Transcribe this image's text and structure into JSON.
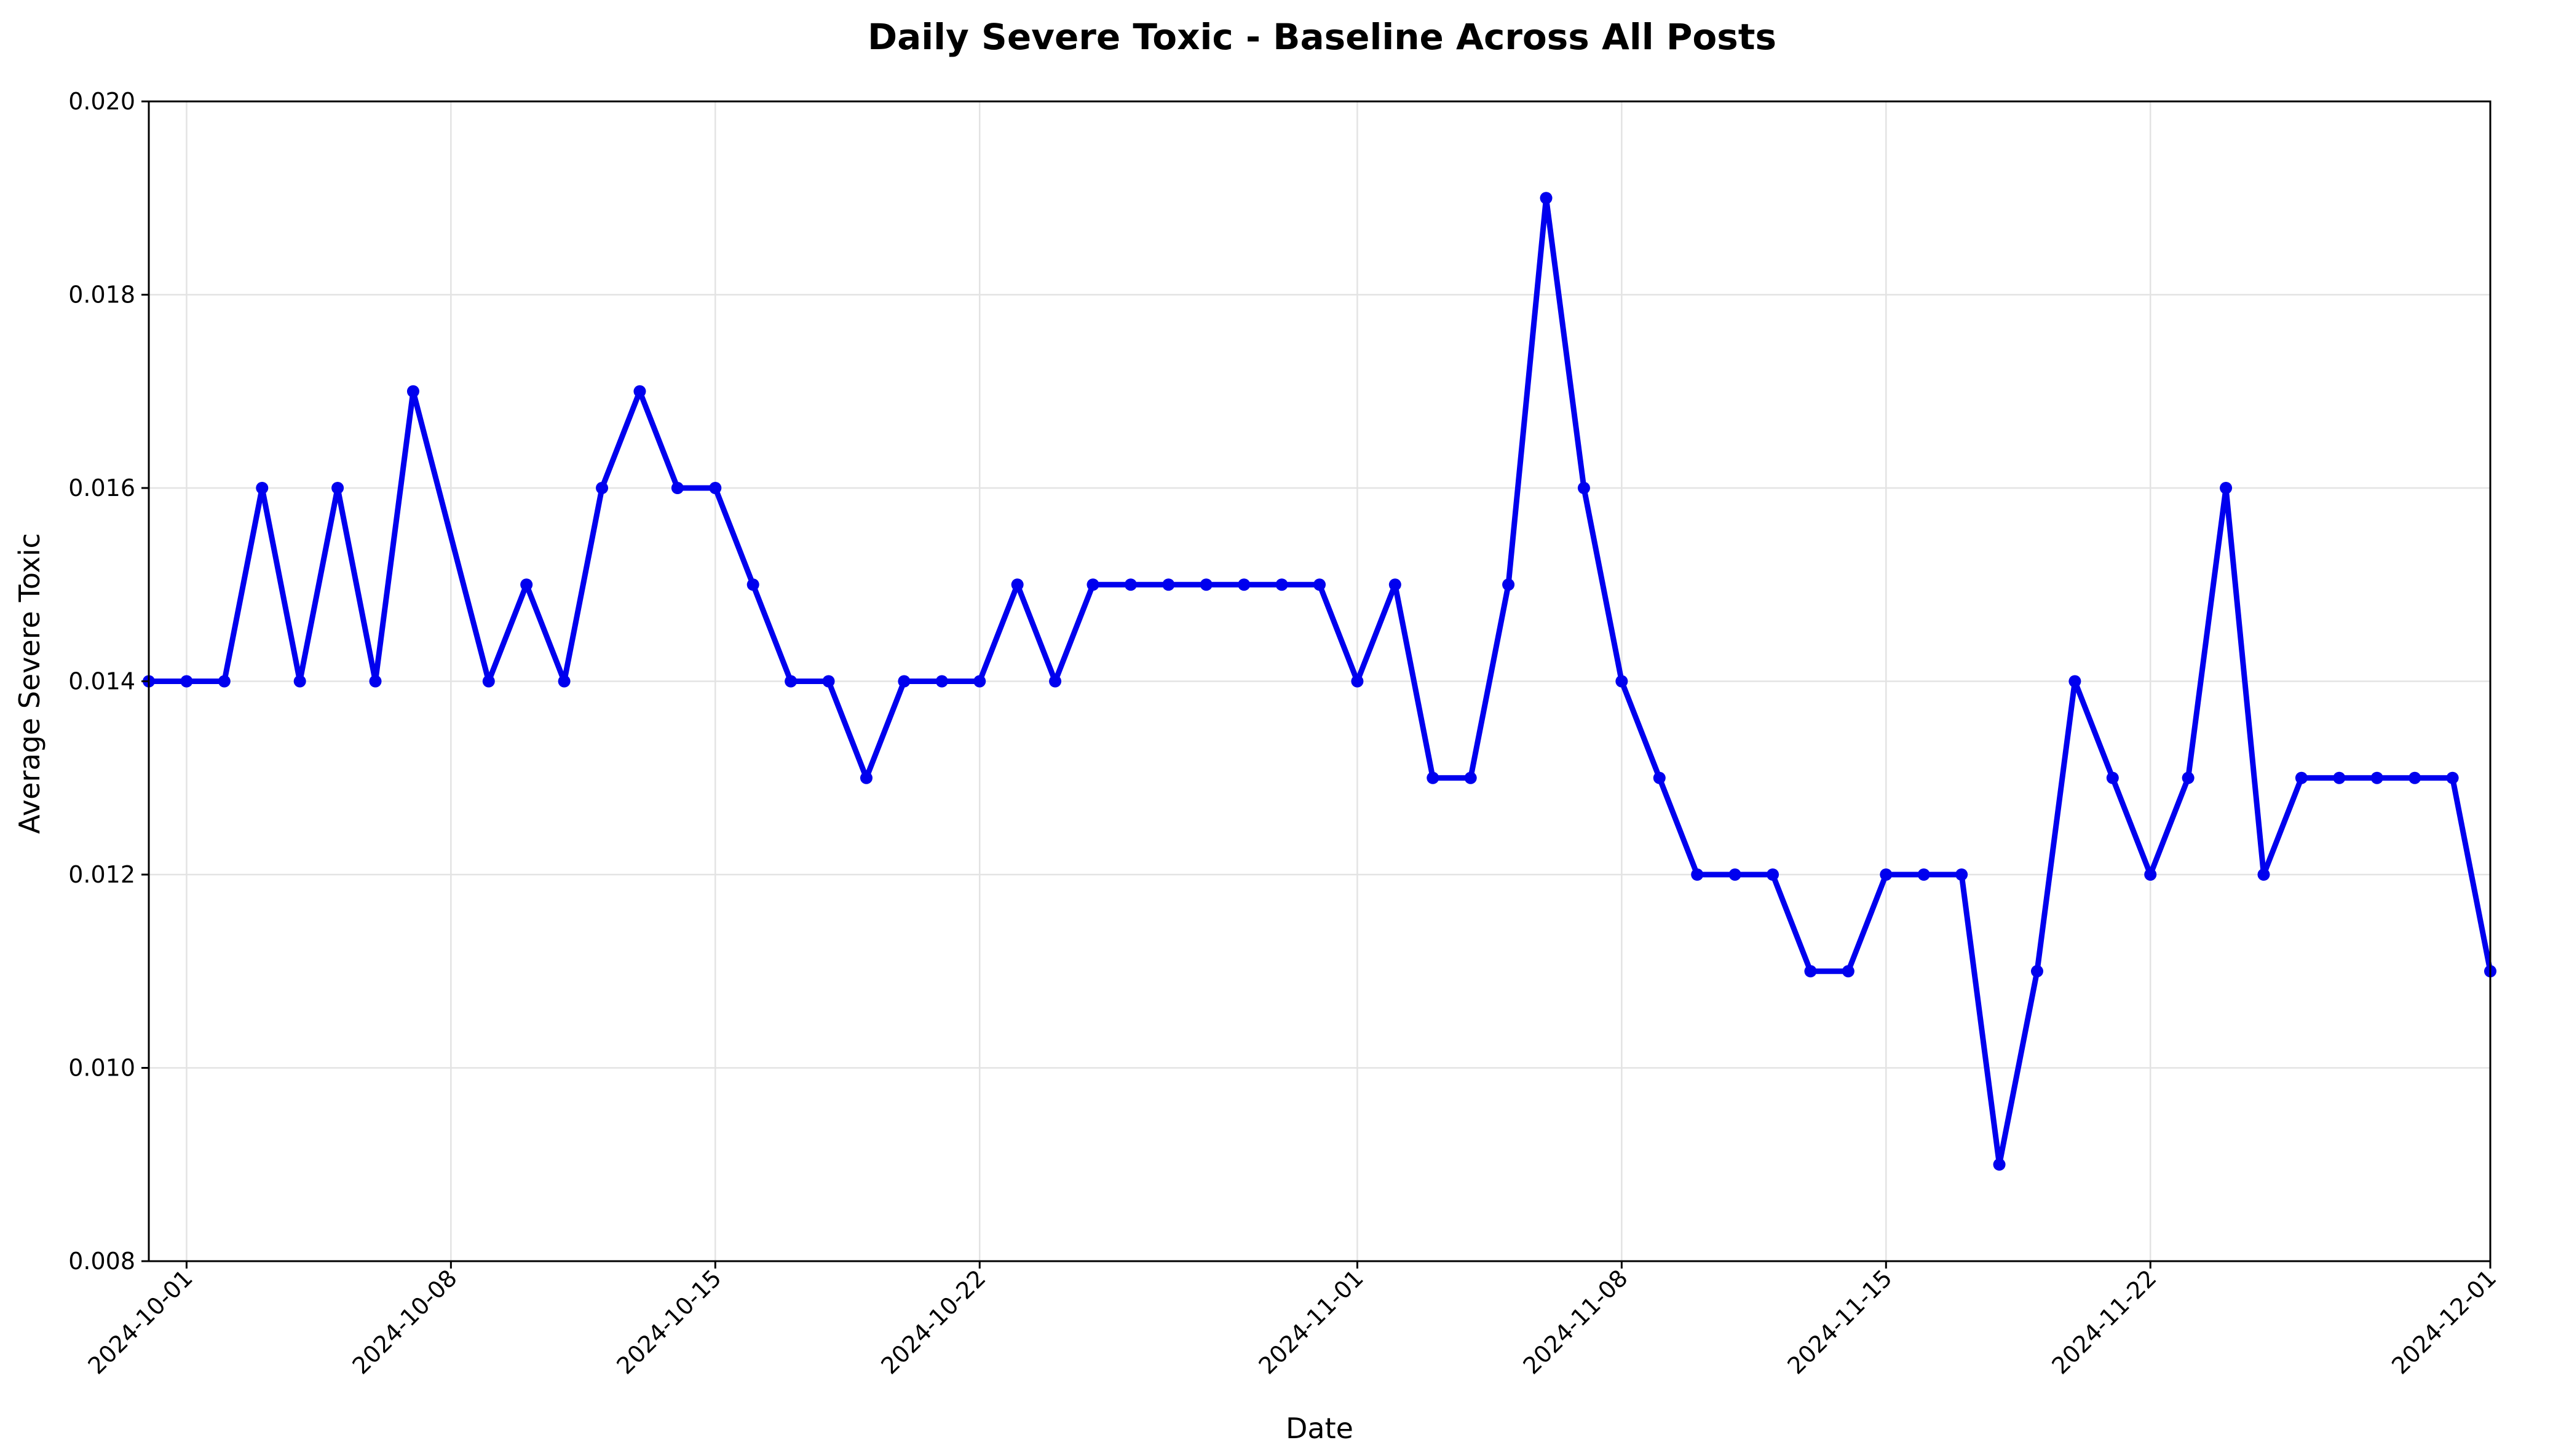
{
  "chart_data": {
    "type": "line",
    "title": "Daily Severe Toxic - Baseline Across All Posts",
    "xlabel": "Date",
    "ylabel": "Average Severe Toxic",
    "xlim": [
      "2024-09-30",
      "2024-12-01"
    ],
    "ylim": [
      0.008,
      0.02
    ],
    "grid": true,
    "color": "#0000ee",
    "x_ticks": [
      "2024-10-01",
      "2024-10-08",
      "2024-10-15",
      "2024-10-22",
      "2024-11-01",
      "2024-11-08",
      "2024-11-15",
      "2024-11-22",
      "2024-12-01"
    ],
    "y_ticks": [
      "0.008",
      "0.010",
      "0.012",
      "0.014",
      "0.016",
      "0.018",
      "0.020"
    ],
    "series": [
      {
        "x": [
          "2024-09-30",
          "2024-10-01",
          "2024-10-02",
          "2024-10-03",
          "2024-10-04",
          "2024-10-05",
          "2024-10-06",
          "2024-10-07",
          "2024-10-09",
          "2024-10-10",
          "2024-10-11",
          "2024-10-12",
          "2024-10-13",
          "2024-10-14",
          "2024-10-15",
          "2024-10-16",
          "2024-10-17",
          "2024-10-18",
          "2024-10-19",
          "2024-10-20",
          "2024-10-21",
          "2024-10-22",
          "2024-10-23",
          "2024-10-24",
          "2024-10-25",
          "2024-10-26",
          "2024-10-27",
          "2024-10-28",
          "2024-10-29",
          "2024-10-30",
          "2024-10-31",
          "2024-11-01",
          "2024-11-02",
          "2024-11-03",
          "2024-11-04",
          "2024-11-05",
          "2024-11-06",
          "2024-11-07",
          "2024-11-08",
          "2024-11-09",
          "2024-11-10",
          "2024-11-11",
          "2024-11-12",
          "2024-11-13",
          "2024-11-14",
          "2024-11-15",
          "2024-11-16",
          "2024-11-17",
          "2024-11-18",
          "2024-11-19",
          "2024-11-20",
          "2024-11-21",
          "2024-11-22",
          "2024-11-23",
          "2024-11-24",
          "2024-11-25",
          "2024-11-26",
          "2024-11-27",
          "2024-11-28",
          "2024-11-29",
          "2024-11-30",
          "2024-12-01"
        ],
        "values": [
          0.014,
          0.014,
          0.014,
          0.016,
          0.014,
          0.016,
          0.014,
          0.017,
          0.014,
          0.015,
          0.014,
          0.016,
          0.017,
          0.016,
          0.016,
          0.015,
          0.014,
          0.014,
          0.013,
          0.014,
          0.014,
          0.014,
          0.015,
          0.014,
          0.015,
          0.015,
          0.015,
          0.015,
          0.015,
          0.015,
          0.015,
          0.014,
          0.015,
          0.013,
          0.013,
          0.015,
          0.019,
          0.016,
          0.014,
          0.013,
          0.012,
          0.012,
          0.012,
          0.011,
          0.011,
          0.012,
          0.012,
          0.012,
          0.009,
          0.011,
          0.014,
          0.013,
          0.012,
          0.013,
          0.016,
          0.012,
          0.013,
          0.013,
          0.013,
          0.013,
          0.013,
          0.011
        ]
      }
    ]
  }
}
